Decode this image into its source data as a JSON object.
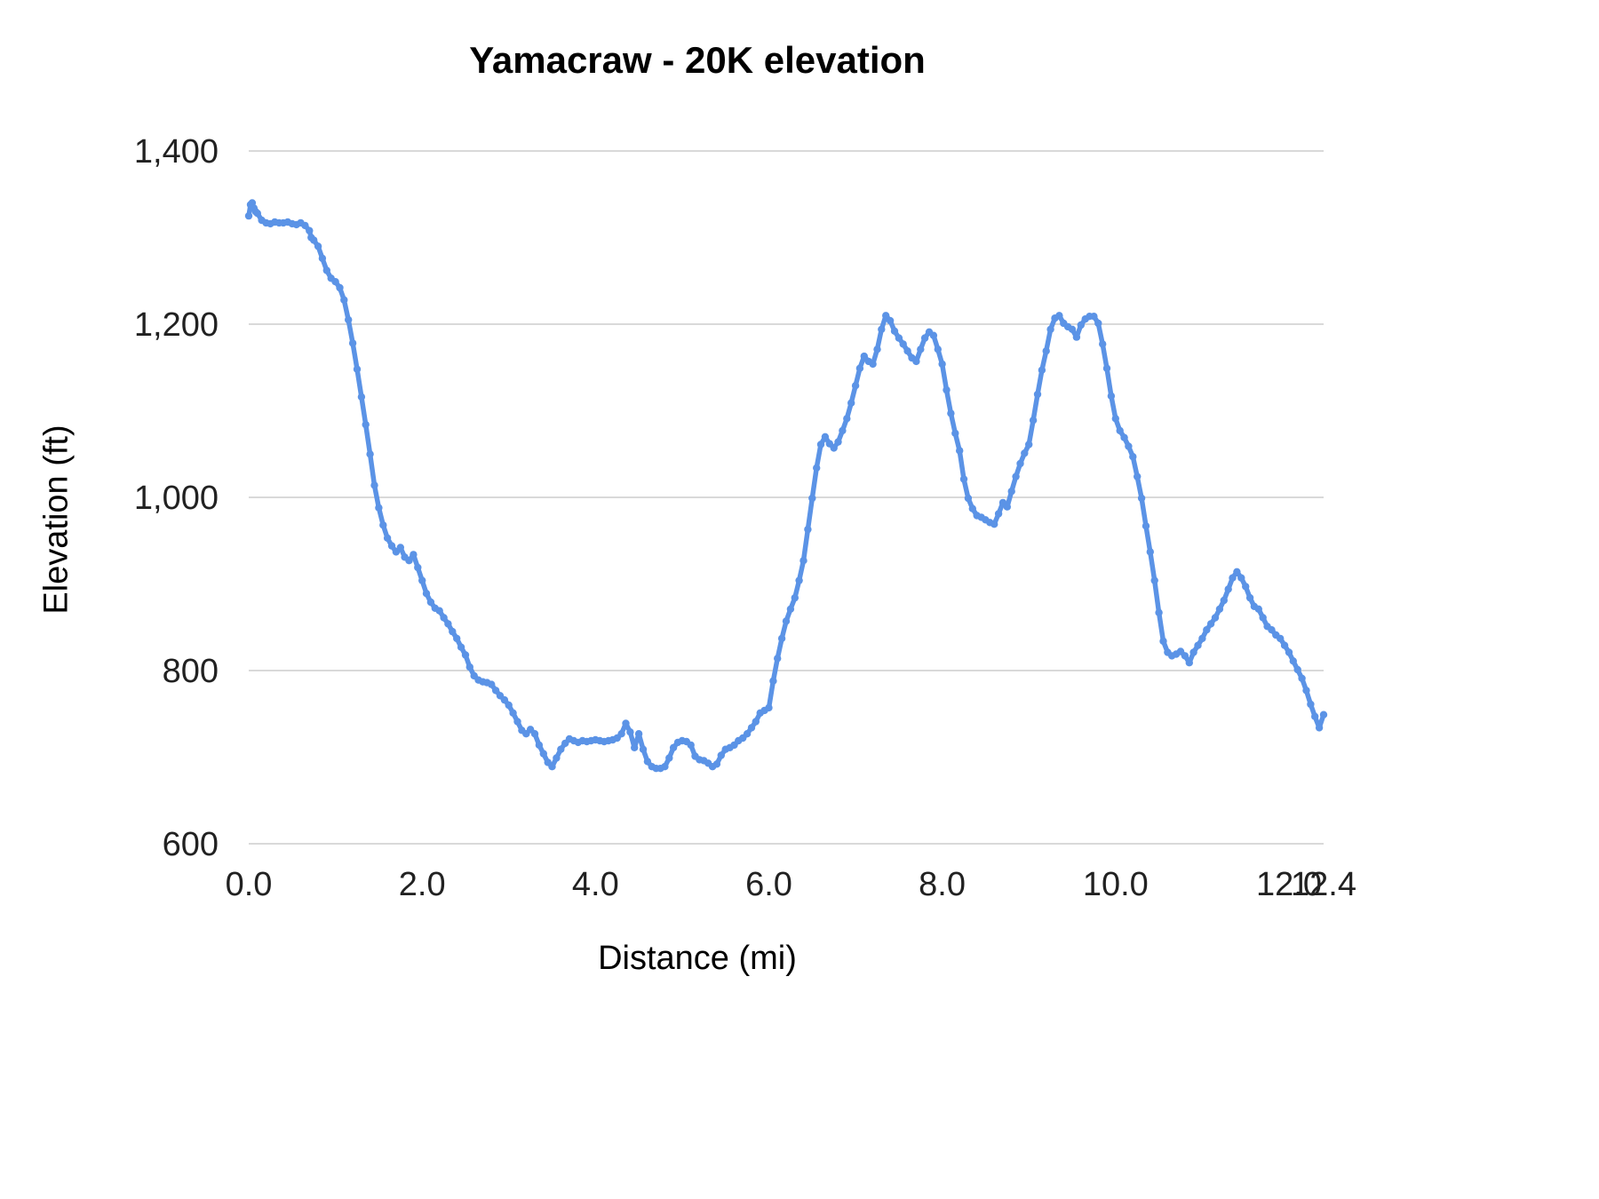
{
  "page": {
    "background": "#ffffff"
  },
  "chart_data": {
    "type": "line",
    "title": "Yamacraw - 20K elevation",
    "xlabel": "Distance (mi)",
    "ylabel": "Elevation (ft)",
    "x_range": [
      0,
      12.4
    ],
    "y_range": [
      600,
      1400
    ],
    "grid": "horizontal-only",
    "legend": "none",
    "line_color": "#5b93e6",
    "grid_color": "#d9d9d9",
    "tick_color": "#212121",
    "x_ticks": [
      {
        "value": 0.0,
        "label": "0.0"
      },
      {
        "value": 2.0,
        "label": "2.0"
      },
      {
        "value": 4.0,
        "label": "4.0"
      },
      {
        "value": 6.0,
        "label": "6.0"
      },
      {
        "value": 8.0,
        "label": "8.0"
      },
      {
        "value": 10.0,
        "label": "10.0"
      },
      {
        "value": 12.0,
        "label": "12.0"
      },
      {
        "value": 12.4,
        "label": "12.4"
      }
    ],
    "y_ticks": [
      {
        "value": 600,
        "label": "600"
      },
      {
        "value": 800,
        "label": "800"
      },
      {
        "value": 1000,
        "label": "1,000"
      },
      {
        "value": 1200,
        "label": "1,200"
      },
      {
        "value": 1400,
        "label": "1,400"
      }
    ],
    "series": [
      {
        "name": "Elevation",
        "points": [
          [
            0.0,
            1325
          ],
          [
            0.02,
            1338
          ],
          [
            0.04,
            1340
          ],
          [
            0.06,
            1334
          ],
          [
            0.08,
            1330
          ],
          [
            0.1,
            1328
          ],
          [
            0.15,
            1320
          ],
          [
            0.2,
            1317
          ],
          [
            0.25,
            1316
          ],
          [
            0.3,
            1318
          ],
          [
            0.35,
            1317
          ],
          [
            0.4,
            1317
          ],
          [
            0.45,
            1318
          ],
          [
            0.5,
            1316
          ],
          [
            0.55,
            1315
          ],
          [
            0.6,
            1317
          ],
          [
            0.65,
            1314
          ],
          [
            0.7,
            1308
          ],
          [
            0.72,
            1300
          ],
          [
            0.75,
            1297
          ],
          [
            0.8,
            1290
          ],
          [
            0.85,
            1276
          ],
          [
            0.9,
            1262
          ],
          [
            0.95,
            1253
          ],
          [
            1.0,
            1249
          ],
          [
            1.05,
            1242
          ],
          [
            1.1,
            1228
          ],
          [
            1.15,
            1205
          ],
          [
            1.2,
            1178
          ],
          [
            1.25,
            1148
          ],
          [
            1.3,
            1116
          ],
          [
            1.35,
            1084
          ],
          [
            1.4,
            1050
          ],
          [
            1.45,
            1014
          ],
          [
            1.5,
            988
          ],
          [
            1.55,
            968
          ],
          [
            1.6,
            953
          ],
          [
            1.65,
            944
          ],
          [
            1.7,
            937
          ],
          [
            1.75,
            942
          ],
          [
            1.8,
            931
          ],
          [
            1.85,
            927
          ],
          [
            1.9,
            934
          ],
          [
            1.95,
            919
          ],
          [
            2.0,
            904
          ],
          [
            2.05,
            889
          ],
          [
            2.1,
            879
          ],
          [
            2.15,
            872
          ],
          [
            2.2,
            869
          ],
          [
            2.25,
            861
          ],
          [
            2.3,
            854
          ],
          [
            2.35,
            845
          ],
          [
            2.4,
            837
          ],
          [
            2.45,
            827
          ],
          [
            2.5,
            818
          ],
          [
            2.55,
            804
          ],
          [
            2.6,
            794
          ],
          [
            2.65,
            789
          ],
          [
            2.7,
            787
          ],
          [
            2.75,
            786
          ],
          [
            2.8,
            784
          ],
          [
            2.85,
            777
          ],
          [
            2.9,
            771
          ],
          [
            2.95,
            766
          ],
          [
            3.0,
            760
          ],
          [
            3.05,
            751
          ],
          [
            3.1,
            741
          ],
          [
            3.15,
            731
          ],
          [
            3.2,
            727
          ],
          [
            3.25,
            732
          ],
          [
            3.3,
            727
          ],
          [
            3.35,
            714
          ],
          [
            3.4,
            704
          ],
          [
            3.45,
            694
          ],
          [
            3.5,
            689
          ],
          [
            3.55,
            699
          ],
          [
            3.6,
            709
          ],
          [
            3.65,
            716
          ],
          [
            3.7,
            721
          ],
          [
            3.75,
            719
          ],
          [
            3.8,
            717
          ],
          [
            3.85,
            719
          ],
          [
            3.9,
            718
          ],
          [
            3.95,
            719
          ],
          [
            4.0,
            720
          ],
          [
            4.05,
            719
          ],
          [
            4.1,
            718
          ],
          [
            4.15,
            719
          ],
          [
            4.2,
            720
          ],
          [
            4.25,
            722
          ],
          [
            4.3,
            727
          ],
          [
            4.35,
            739
          ],
          [
            4.4,
            729
          ],
          [
            4.45,
            711
          ],
          [
            4.5,
            727
          ],
          [
            4.55,
            709
          ],
          [
            4.6,
            695
          ],
          [
            4.65,
            689
          ],
          [
            4.7,
            687
          ],
          [
            4.75,
            687
          ],
          [
            4.8,
            689
          ],
          [
            4.85,
            699
          ],
          [
            4.9,
            711
          ],
          [
            4.95,
            717
          ],
          [
            5.0,
            719
          ],
          [
            5.05,
            718
          ],
          [
            5.1,
            714
          ],
          [
            5.15,
            701
          ],
          [
            5.2,
            697
          ],
          [
            5.25,
            696
          ],
          [
            5.3,
            693
          ],
          [
            5.35,
            689
          ],
          [
            5.4,
            692
          ],
          [
            5.45,
            702
          ],
          [
            5.5,
            709
          ],
          [
            5.55,
            711
          ],
          [
            5.6,
            714
          ],
          [
            5.65,
            719
          ],
          [
            5.7,
            722
          ],
          [
            5.75,
            727
          ],
          [
            5.8,
            734
          ],
          [
            5.85,
            741
          ],
          [
            5.9,
            751
          ],
          [
            5.95,
            754
          ],
          [
            6.0,
            757
          ],
          [
            6.05,
            788
          ],
          [
            6.1,
            814
          ],
          [
            6.15,
            837
          ],
          [
            6.2,
            857
          ],
          [
            6.25,
            871
          ],
          [
            6.3,
            884
          ],
          [
            6.35,
            904
          ],
          [
            6.4,
            927
          ],
          [
            6.45,
            963
          ],
          [
            6.5,
            999
          ],
          [
            6.55,
            1034
          ],
          [
            6.6,
            1061
          ],
          [
            6.65,
            1070
          ],
          [
            6.7,
            1062
          ],
          [
            6.75,
            1057
          ],
          [
            6.8,
            1064
          ],
          [
            6.85,
            1077
          ],
          [
            6.9,
            1091
          ],
          [
            6.95,
            1109
          ],
          [
            7.0,
            1129
          ],
          [
            7.05,
            1149
          ],
          [
            7.1,
            1163
          ],
          [
            7.15,
            1157
          ],
          [
            7.2,
            1154
          ],
          [
            7.25,
            1171
          ],
          [
            7.3,
            1194
          ],
          [
            7.35,
            1210
          ],
          [
            7.4,
            1204
          ],
          [
            7.45,
            1192
          ],
          [
            7.5,
            1184
          ],
          [
            7.55,
            1177
          ],
          [
            7.6,
            1169
          ],
          [
            7.65,
            1161
          ],
          [
            7.7,
            1157
          ],
          [
            7.75,
            1171
          ],
          [
            7.8,
            1184
          ],
          [
            7.85,
            1191
          ],
          [
            7.9,
            1187
          ],
          [
            7.95,
            1171
          ],
          [
            8.0,
            1154
          ],
          [
            8.05,
            1124
          ],
          [
            8.1,
            1097
          ],
          [
            8.15,
            1074
          ],
          [
            8.2,
            1054
          ],
          [
            8.25,
            1021
          ],
          [
            8.3,
            999
          ],
          [
            8.35,
            987
          ],
          [
            8.4,
            979
          ],
          [
            8.45,
            977
          ],
          [
            8.5,
            974
          ],
          [
            8.55,
            971
          ],
          [
            8.6,
            969
          ],
          [
            8.65,
            981
          ],
          [
            8.7,
            994
          ],
          [
            8.75,
            989
          ],
          [
            8.8,
            1007
          ],
          [
            8.85,
            1024
          ],
          [
            8.9,
            1039
          ],
          [
            8.95,
            1051
          ],
          [
            9.0,
            1061
          ],
          [
            9.05,
            1089
          ],
          [
            9.1,
            1119
          ],
          [
            9.15,
            1147
          ],
          [
            9.2,
            1169
          ],
          [
            9.25,
            1194
          ],
          [
            9.3,
            1207
          ],
          [
            9.35,
            1210
          ],
          [
            9.4,
            1201
          ],
          [
            9.45,
            1197
          ],
          [
            9.5,
            1194
          ],
          [
            9.55,
            1185
          ],
          [
            9.6,
            1199
          ],
          [
            9.65,
            1206
          ],
          [
            9.7,
            1209
          ],
          [
            9.75,
            1209
          ],
          [
            9.8,
            1201
          ],
          [
            9.85,
            1177
          ],
          [
            9.9,
            1149
          ],
          [
            9.95,
            1117
          ],
          [
            10.0,
            1091
          ],
          [
            10.05,
            1077
          ],
          [
            10.1,
            1069
          ],
          [
            10.15,
            1059
          ],
          [
            10.2,
            1047
          ],
          [
            10.25,
            1024
          ],
          [
            10.3,
            999
          ],
          [
            10.35,
            967
          ],
          [
            10.4,
            937
          ],
          [
            10.45,
            904
          ],
          [
            10.5,
            867
          ],
          [
            10.55,
            834
          ],
          [
            10.6,
            821
          ],
          [
            10.65,
            817
          ],
          [
            10.7,
            819
          ],
          [
            10.75,
            822
          ],
          [
            10.8,
            817
          ],
          [
            10.85,
            809
          ],
          [
            10.9,
            821
          ],
          [
            10.95,
            829
          ],
          [
            11.0,
            837
          ],
          [
            11.05,
            847
          ],
          [
            11.1,
            854
          ],
          [
            11.15,
            861
          ],
          [
            11.2,
            871
          ],
          [
            11.25,
            881
          ],
          [
            11.3,
            894
          ],
          [
            11.35,
            907
          ],
          [
            11.4,
            914
          ],
          [
            11.45,
            907
          ],
          [
            11.5,
            897
          ],
          [
            11.55,
            884
          ],
          [
            11.6,
            874
          ],
          [
            11.65,
            871
          ],
          [
            11.7,
            861
          ],
          [
            11.75,
            851
          ],
          [
            11.8,
            847
          ],
          [
            11.85,
            841
          ],
          [
            11.9,
            837
          ],
          [
            11.95,
            829
          ],
          [
            12.0,
            821
          ],
          [
            12.05,
            811
          ],
          [
            12.1,
            801
          ],
          [
            12.15,
            791
          ],
          [
            12.2,
            777
          ],
          [
            12.25,
            761
          ],
          [
            12.3,
            747
          ],
          [
            12.35,
            734
          ],
          [
            12.4,
            749
          ]
        ]
      }
    ]
  }
}
